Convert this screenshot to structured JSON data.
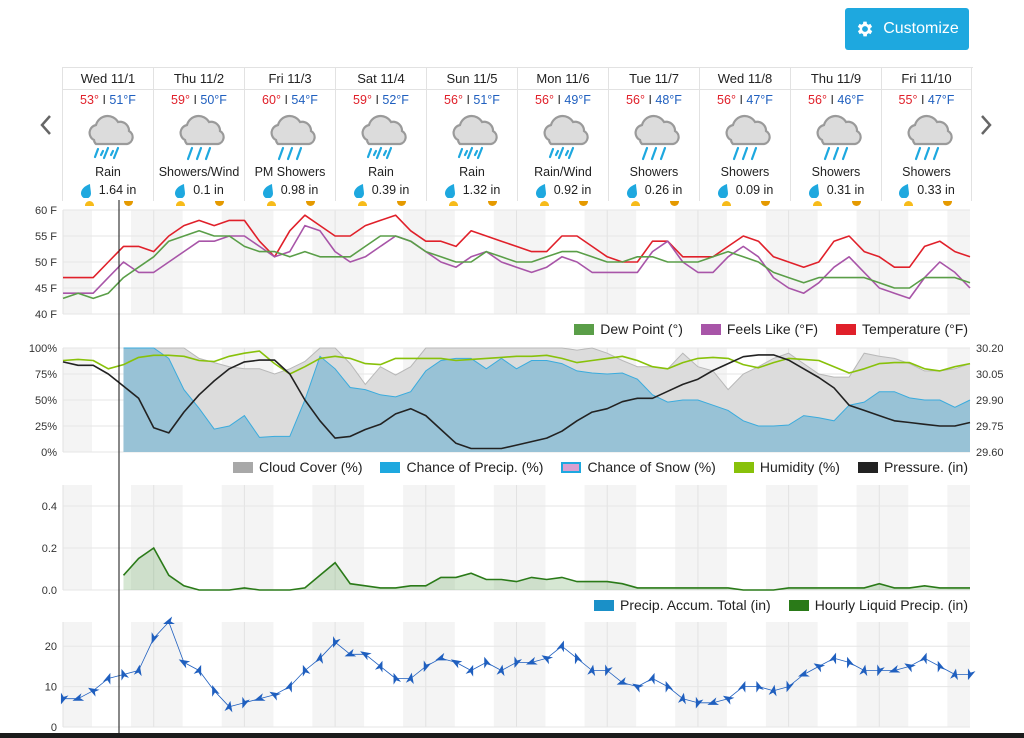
{
  "toolbar": {
    "customize_label": "Customize",
    "customize_icon": "gear-icon",
    "accent": "#1ea8df"
  },
  "nav": {
    "prev_icon": "chevron-left-icon",
    "next_icon": "chevron-right-icon"
  },
  "days": [
    {
      "label": "Wed 11/1",
      "hi": "53°",
      "lo": "51°F",
      "icon": "rain-icon",
      "condition": "Rain",
      "precip": "1.64 in"
    },
    {
      "label": "Thu 11/2",
      "hi": "59°",
      "lo": "50°F",
      "icon": "showers-icon",
      "condition": "Showers/Wind",
      "precip": "0.1 in"
    },
    {
      "label": "Fri 11/3",
      "hi": "60°",
      "lo": "54°F",
      "icon": "showers-icon",
      "condition": "PM Showers",
      "precip": "0.98 in"
    },
    {
      "label": "Sat 11/4",
      "hi": "59°",
      "lo": "52°F",
      "icon": "rain-icon",
      "condition": "Rain",
      "precip": "0.39 in"
    },
    {
      "label": "Sun 11/5",
      "hi": "56°",
      "lo": "51°F",
      "icon": "rain-icon",
      "condition": "Rain",
      "precip": "1.32 in"
    },
    {
      "label": "Mon 11/6",
      "hi": "56°",
      "lo": "49°F",
      "icon": "rain-icon",
      "condition": "Rain/Wind",
      "precip": "0.92 in"
    },
    {
      "label": "Tue 11/7",
      "hi": "56°",
      "lo": "48°F",
      "icon": "showers-icon",
      "condition": "Showers",
      "precip": "0.26 in"
    },
    {
      "label": "Wed 11/8",
      "hi": "56°",
      "lo": "47°F",
      "icon": "showers-icon",
      "condition": "Showers",
      "precip": "0.09 in"
    },
    {
      "label": "Thu 11/9",
      "hi": "56°",
      "lo": "46°F",
      "icon": "showers-icon",
      "condition": "Showers",
      "precip": "0.31 in"
    },
    {
      "label": "Fri 11/10",
      "hi": "55°",
      "lo": "47°F",
      "icon": "showers-icon",
      "condition": "Showers",
      "precip": "0.33 in"
    }
  ],
  "legends": {
    "temp": [
      {
        "label": "Dew Point (°)",
        "color": "#5a9e48"
      },
      {
        "label": "Feels Like (°F)",
        "color": "#a855a8"
      },
      {
        "label": "Temperature (°F)",
        "color": "#e0202a"
      }
    ],
    "sky": [
      {
        "label": "Cloud Cover (%)",
        "color": "#a8a8a8"
      },
      {
        "label": "Chance of Precip. (%)",
        "color": "#1ea8df"
      },
      {
        "label": "Chance of Snow (%)",
        "color": "#d9a0d0"
      },
      {
        "label": "Humidity (%)",
        "color": "#88c10a"
      },
      {
        "label": "Pressure. (in)",
        "color": "#222222"
      }
    ],
    "precip": [
      {
        "label": "Precip. Accum. Total (in)",
        "color": "#1a90c8"
      },
      {
        "label": "Hourly Liquid Precip. (in)",
        "color": "#2a7a18"
      }
    ]
  },
  "chart_data": [
    {
      "type": "line",
      "id": "temp",
      "ylim": [
        40,
        60
      ],
      "yticks": [
        "40 F",
        "45 F",
        "50 F",
        "55 F",
        "60 F"
      ],
      "grid": true,
      "series": [
        {
          "name": "Temperature (°F)",
          "color": "#e0202a",
          "values": [
            47,
            47,
            47,
            50,
            53,
            53,
            52,
            55,
            57,
            58,
            57,
            58,
            58,
            54,
            51,
            56,
            59,
            57,
            55,
            55,
            57,
            58,
            59,
            56,
            54,
            54,
            53,
            56,
            55,
            54,
            53,
            52,
            52,
            55,
            55,
            53,
            51,
            50,
            50,
            54,
            54,
            51,
            51,
            51,
            53,
            55,
            54,
            51,
            50,
            49,
            50,
            54,
            55,
            52,
            51,
            49,
            49,
            53,
            54,
            52,
            51
          ]
        },
        {
          "name": "Feels Like (°F)",
          "color": "#a855a8",
          "values": [
            44,
            44,
            44,
            47,
            50,
            48,
            48,
            50,
            52,
            54,
            54,
            55,
            55,
            53,
            51,
            52,
            57,
            56,
            52,
            50,
            51,
            53,
            55,
            54,
            52,
            50,
            49,
            51,
            52,
            50,
            49,
            48,
            49,
            51,
            50,
            48,
            48,
            48,
            48,
            52,
            54,
            50,
            48,
            48,
            51,
            53,
            51,
            47,
            45,
            44,
            46,
            49,
            51,
            48,
            45,
            44,
            43,
            47,
            50,
            48,
            45
          ]
        },
        {
          "name": "Dew Point (°)",
          "color": "#5a9e48",
          "values": [
            43,
            44,
            43,
            44,
            47,
            49,
            51,
            54,
            55,
            56,
            55,
            55,
            53,
            52,
            52,
            51,
            52,
            51,
            51,
            51,
            53,
            55,
            55,
            54,
            52,
            51,
            50,
            50,
            52,
            51,
            50,
            50,
            51,
            52,
            52,
            51,
            50,
            50,
            51,
            51,
            50,
            50,
            50,
            51,
            52,
            51,
            50,
            48,
            47,
            46,
            47,
            47,
            47,
            47,
            46,
            45,
            45,
            47,
            47,
            47,
            46
          ]
        }
      ]
    },
    {
      "type": "area",
      "id": "sky",
      "ylim": [
        0,
        100
      ],
      "yticks": [
        "0%",
        "25%",
        "50%",
        "75%",
        "100%"
      ],
      "y2lim": [
        29.6,
        30.2
      ],
      "y2ticks": [
        "29.60",
        "29.75",
        "29.90",
        "30.05",
        "30.20"
      ],
      "grid": true,
      "series": [
        {
          "name": "Cloud Cover (%)",
          "color": "#a8a8a8",
          "values": [
            null,
            null,
            null,
            null,
            100,
            100,
            100,
            100,
            100,
            90,
            86,
            82,
            80,
            80,
            75,
            80,
            87,
            100,
            100,
            85,
            65,
            82,
            74,
            82,
            100,
            100,
            100,
            100,
            100,
            100,
            100,
            100,
            100,
            100,
            98,
            100,
            95,
            88,
            82,
            82,
            80,
            95,
            82,
            78,
            60,
            75,
            82,
            90,
            95,
            85,
            75,
            72,
            72,
            95,
            92,
            90,
            85,
            78,
            78,
            80,
            85
          ]
        },
        {
          "name": "Chance of Precip. (%)",
          "color": "#1ea8df",
          "values": [
            null,
            null,
            null,
            null,
            100,
            100,
            100,
            90,
            60,
            42,
            22,
            25,
            35,
            14,
            15,
            15,
            50,
            92,
            80,
            62,
            60,
            55,
            53,
            58,
            78,
            88,
            90,
            90,
            80,
            90,
            80,
            88,
            88,
            85,
            78,
            76,
            75,
            76,
            70,
            55,
            48,
            50,
            50,
            45,
            40,
            30,
            25,
            25,
            26,
            35,
            33,
            30,
            45,
            48,
            58,
            58,
            52,
            50,
            50,
            43,
            50
          ]
        },
        {
          "name": "Chance of Snow (%)",
          "color": "#d9a0d0",
          "values": []
        },
        {
          "name": "Humidity (%)",
          "color": "#88c10a",
          "values": [
            88,
            89,
            88,
            80,
            84,
            91,
            93,
            93,
            92,
            88,
            87,
            92,
            95,
            97,
            85,
            75,
            82,
            90,
            92,
            90,
            85,
            84,
            90,
            90,
            90,
            90,
            88,
            89,
            90,
            91,
            92,
            92,
            93,
            90,
            86,
            88,
            90,
            92,
            88,
            82,
            80,
            86,
            90,
            91,
            90,
            84,
            81,
            86,
            90,
            89,
            88,
            82,
            76,
            80,
            85,
            86,
            86,
            80,
            78,
            82,
            85
          ]
        },
        {
          "name": "Pressure. (in)",
          "color": "#222222",
          "axis": "right",
          "values": [
            30.12,
            30.1,
            30.1,
            30.05,
            29.98,
            29.91,
            29.74,
            29.71,
            29.83,
            29.93,
            30.01,
            30.08,
            30.12,
            30.13,
            30.13,
            30.05,
            29.9,
            29.78,
            29.68,
            29.69,
            29.73,
            29.76,
            29.82,
            29.85,
            29.81,
            29.73,
            29.65,
            29.62,
            29.62,
            29.62,
            29.64,
            29.66,
            29.68,
            29.72,
            29.78,
            29.83,
            29.85,
            29.89,
            29.91,
            29.91,
            29.95,
            29.99,
            30.02,
            30.07,
            30.11,
            30.15,
            30.16,
            30.16,
            30.13,
            30.08,
            30.03,
            29.97,
            29.87,
            29.84,
            29.81,
            29.78,
            29.77,
            29.76,
            29.75,
            29.75,
            29.77
          ]
        }
      ]
    },
    {
      "type": "area",
      "id": "precip",
      "ylim": [
        0,
        0.5
      ],
      "yticks": [
        "0.0",
        "0.2",
        "0.4"
      ],
      "grid": true,
      "series": [
        {
          "name": "Precip. Accum. Total (in)",
          "color": "#1a90c8",
          "values": []
        },
        {
          "name": "Hourly Liquid Precip. (in)",
          "color": "#2a7a18",
          "values": [
            null,
            null,
            null,
            null,
            0.07,
            0.15,
            0.2,
            0.07,
            0.02,
            0,
            0,
            0,
            0.01,
            0,
            0,
            0,
            0.01,
            0.07,
            0.13,
            0.03,
            0.02,
            0.01,
            0.01,
            0.02,
            0.02,
            0.06,
            0.06,
            0.08,
            0.05,
            0.05,
            0.04,
            0.06,
            0.05,
            0.06,
            0.04,
            0.04,
            0.04,
            0.03,
            0.01,
            0.01,
            0.01,
            0.01,
            0.01,
            0.01,
            0.01,
            0,
            0,
            0,
            0.01,
            0.01,
            0.01,
            0.01,
            0.01,
            0.01,
            0.03,
            0.01,
            0.01,
            0.02,
            0.01,
            0.01,
            0.01
          ]
        }
      ]
    },
    {
      "type": "line",
      "id": "wind",
      "ylim": [
        0,
        26
      ],
      "yticks": [
        "0",
        "10",
        "20"
      ],
      "grid": true,
      "marker_icon": "wind-arrow-icon",
      "series": [
        {
          "color": "#1f5fbf",
          "values": [
            7,
            7,
            9,
            12,
            13,
            14,
            22,
            26,
            16,
            14,
            9,
            5,
            6,
            7,
            8,
            10,
            14,
            17,
            21,
            18,
            18,
            15,
            12,
            12,
            15,
            17,
            16,
            14,
            16,
            14,
            16,
            16,
            17,
            20,
            17,
            14,
            14,
            11,
            10,
            12,
            10,
            7,
            6,
            6,
            7,
            10,
            10,
            9,
            10,
            13,
            15,
            17,
            16,
            14,
            14,
            14,
            15,
            17,
            15,
            13,
            13
          ]
        }
      ]
    }
  ]
}
